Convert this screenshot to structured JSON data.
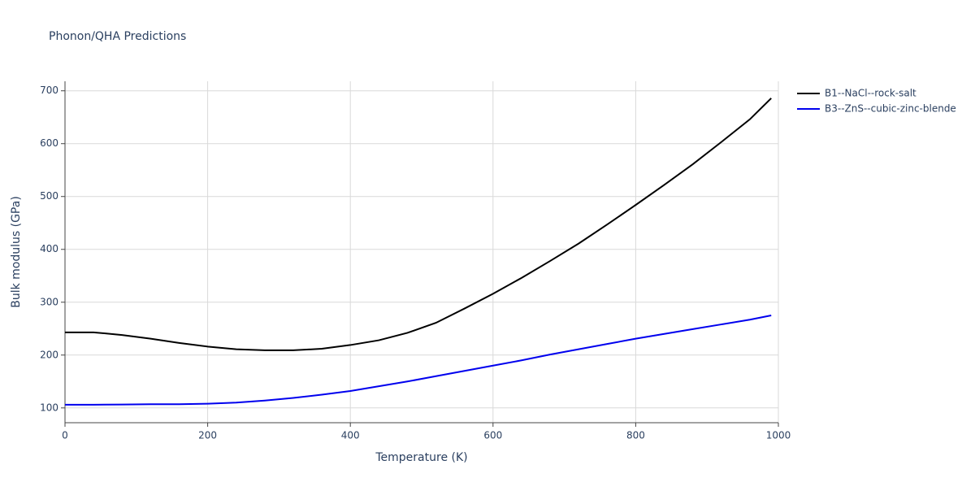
{
  "chart_data": {
    "type": "line",
    "title": "Phonon/QHA Predictions",
    "x_label": "Temperature (K)",
    "y_label": "Bulk modulus (GPa)",
    "x": [
      0,
      40,
      80,
      120,
      160,
      200,
      240,
      280,
      320,
      360,
      400,
      440,
      480,
      520,
      560,
      600,
      640,
      680,
      720,
      760,
      800,
      840,
      880,
      920,
      960,
      990
    ],
    "series": [
      {
        "name": "B1--NaCl--rock-salt",
        "color": "#000000",
        "values": [
          243,
          243,
          238,
          231,
          223,
          216,
          211,
          209,
          209,
          212,
          219,
          228,
          242,
          261,
          288,
          316,
          346,
          378,
          411,
          447,
          484,
          522,
          561,
          603,
          646,
          686
        ]
      },
      {
        "name": "B3--ZnS--cubic-zinc-blende",
        "color": "#0000ee",
        "values": [
          106,
          106,
          106.5,
          107,
          107,
          108,
          110,
          114,
          119,
          125,
          132,
          141,
          150,
          160,
          170,
          180,
          190,
          201,
          211,
          221,
          231,
          240,
          249,
          258,
          267,
          275
        ]
      }
    ],
    "xlim": [
      0,
      1000
    ],
    "xticks": [
      0,
      200,
      400,
      600,
      800,
      1000
    ],
    "ylim": [
      72,
      718
    ],
    "yticks": [
      100,
      200,
      300,
      400,
      500,
      600,
      700
    ],
    "grid": true,
    "legend": "right"
  }
}
